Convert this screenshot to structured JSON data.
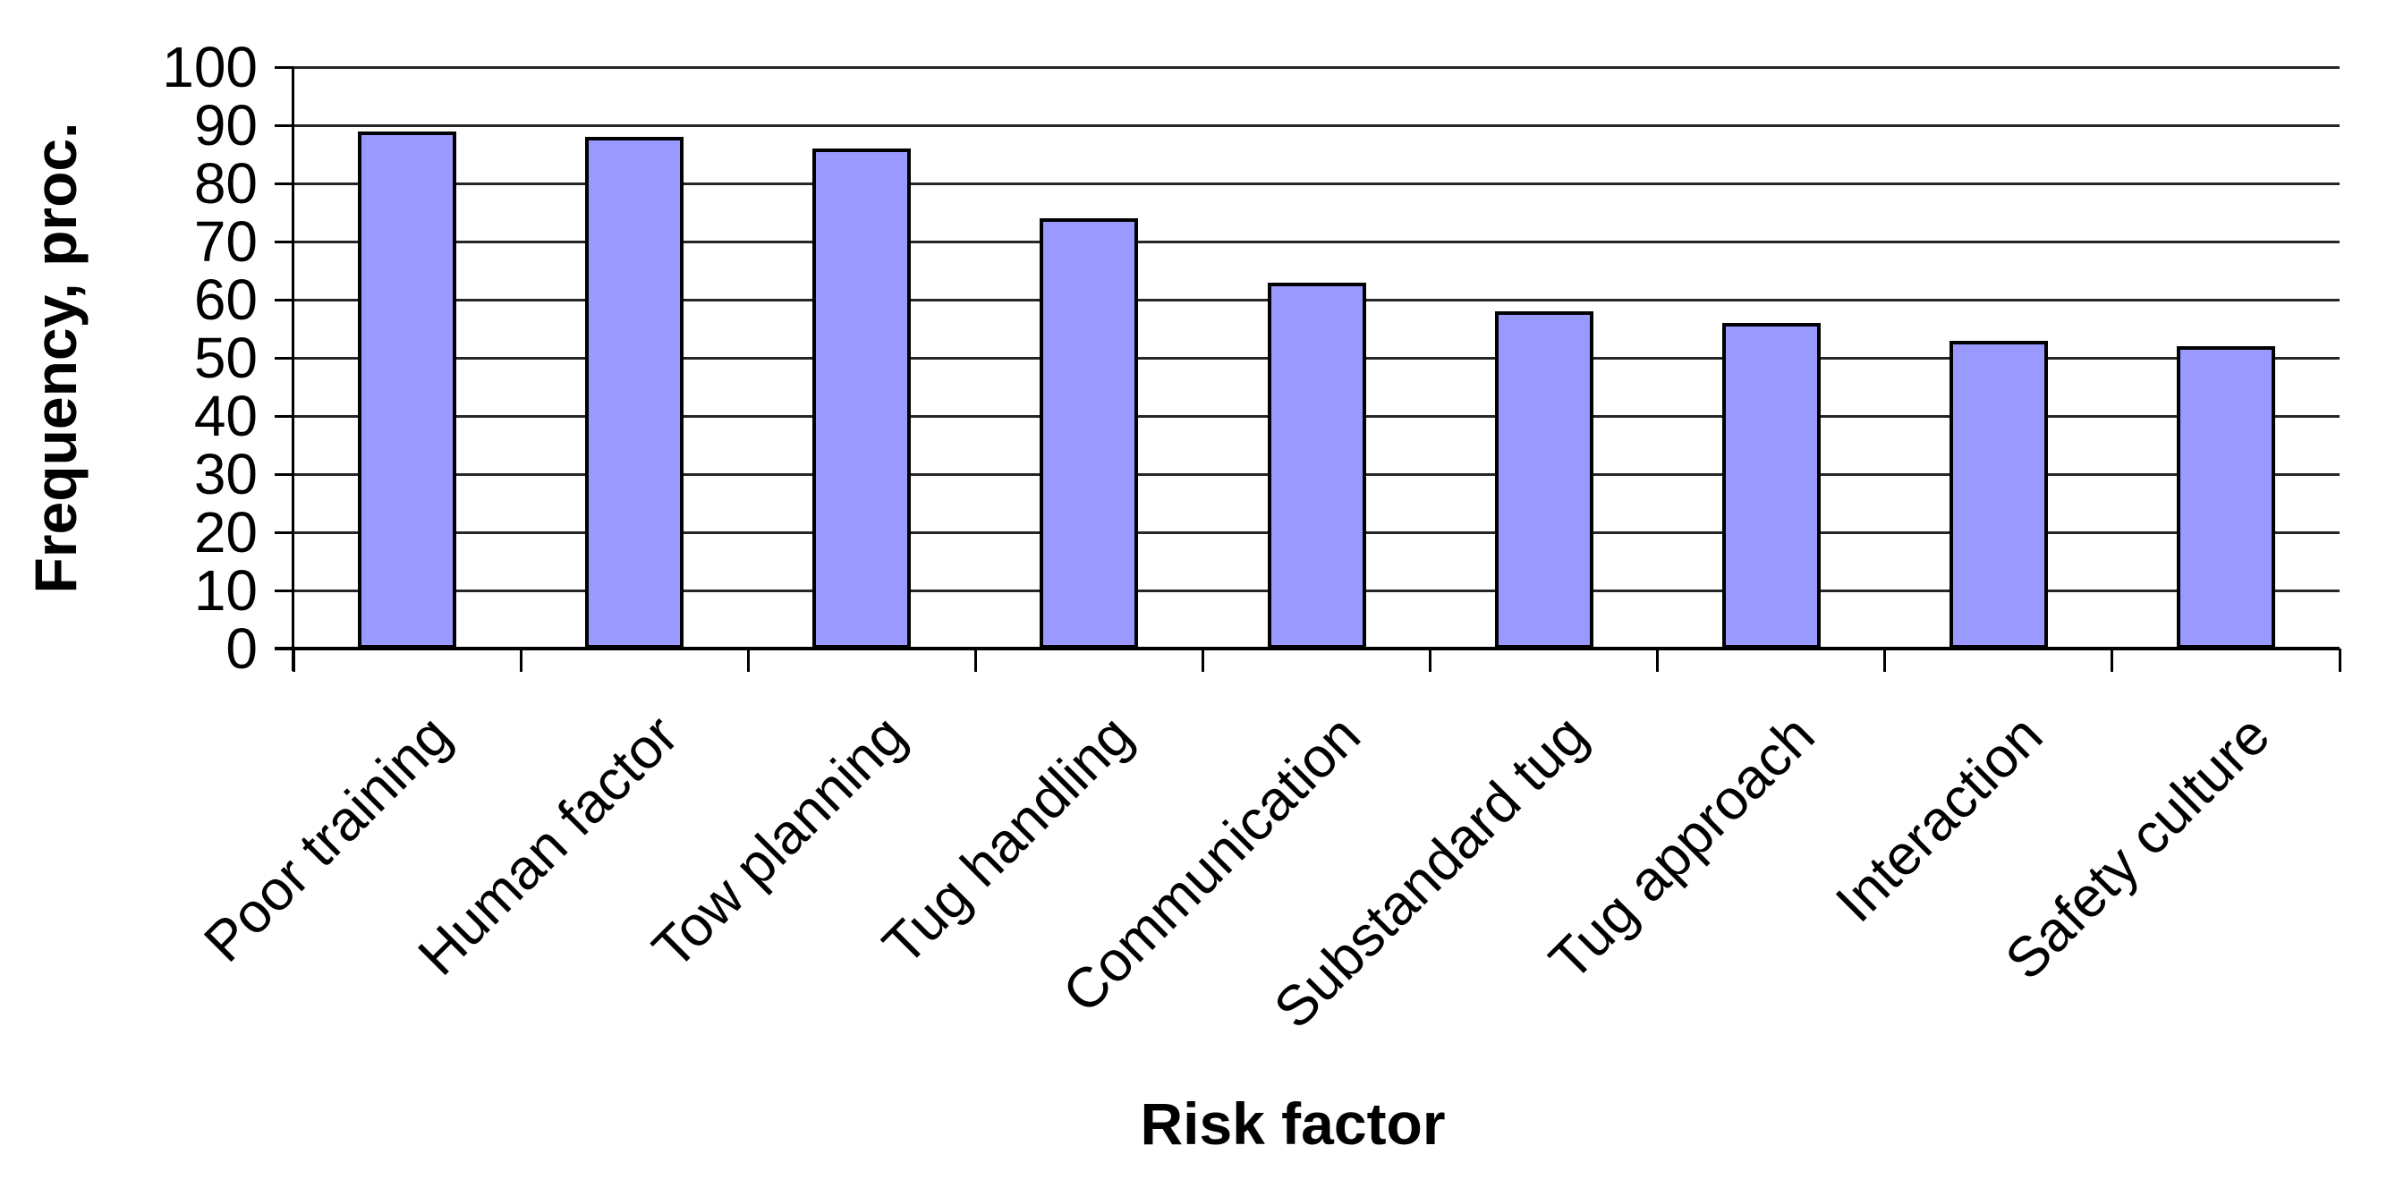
{
  "chart_data": {
    "type": "bar",
    "title": "",
    "ylabel": "Frequency, proc.",
    "xlabel": "Risk factor",
    "categories": [
      "Poor training",
      "Human factor",
      "Tow planning",
      "Tug handling",
      "Communication",
      "Substandard tug",
      "Tug approach",
      "Interaction",
      "Safety culture"
    ],
    "values": [
      89,
      88,
      86,
      74,
      63,
      58,
      56,
      53,
      52
    ],
    "ylim": [
      0,
      100
    ],
    "yticks": [
      0,
      10,
      20,
      30,
      40,
      50,
      60,
      70,
      80,
      90,
      100
    ],
    "grid": "horizontal",
    "legend_position": "none",
    "x_label_rotation_deg": 45,
    "colors": {
      "bar_fill": "#9999FF",
      "bar_border": "#000000",
      "gridline": "#262626",
      "axis": "#000000",
      "text": "#000000",
      "background": "#FFFFFF"
    }
  }
}
